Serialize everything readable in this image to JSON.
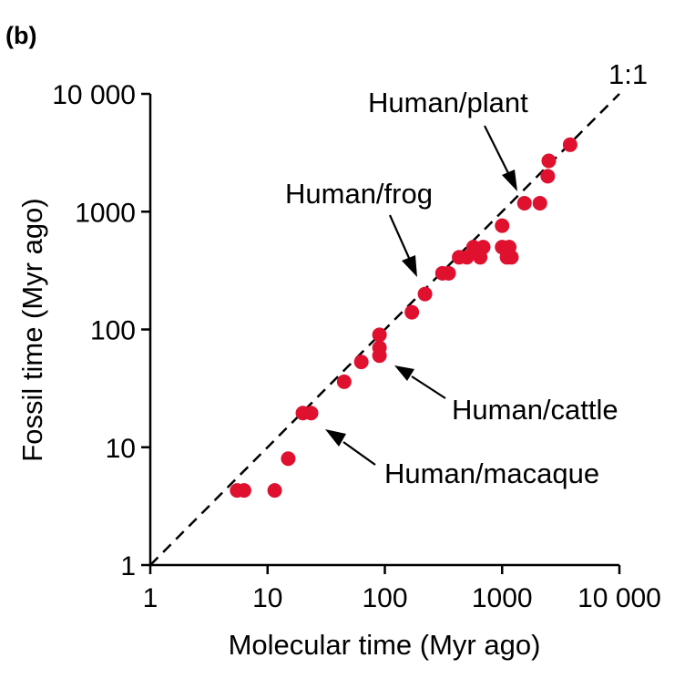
{
  "panel_label": "(b)",
  "chart_data": {
    "type": "scatter",
    "xlabel": "Molecular time (Myr ago)",
    "ylabel": "Fossil time (Myr ago)",
    "xscale": "log",
    "yscale": "log",
    "xlim": [
      1,
      10000
    ],
    "ylim": [
      1,
      10000
    ],
    "xticks": [
      1,
      10,
      100,
      1000,
      10000
    ],
    "yticks": [
      1,
      10,
      100,
      1000,
      10000
    ],
    "xtick_labels": [
      "1",
      "10",
      "100",
      "1000",
      "10 000"
    ],
    "ytick_labels": [
      "1",
      "10",
      "100",
      "1000",
      "10 000"
    ],
    "grid": false,
    "point_color": "#e0102f",
    "reference_line": {
      "label": "1:1",
      "style": "dashed",
      "from": [
        1,
        1
      ],
      "to": [
        10000,
        10000
      ]
    },
    "points": [
      {
        "x": 5.5,
        "y": 4.3
      },
      {
        "x": 6.3,
        "y": 4.3
      },
      {
        "x": 11.5,
        "y": 4.3
      },
      {
        "x": 15,
        "y": 8
      },
      {
        "x": 20,
        "y": 19.5
      },
      {
        "x": 23.5,
        "y": 19.5
      },
      {
        "x": 45,
        "y": 36
      },
      {
        "x": 63,
        "y": 53
      },
      {
        "x": 90,
        "y": 60
      },
      {
        "x": 90,
        "y": 70
      },
      {
        "x": 90,
        "y": 90
      },
      {
        "x": 170,
        "y": 140
      },
      {
        "x": 220,
        "y": 200
      },
      {
        "x": 310,
        "y": 300
      },
      {
        "x": 350,
        "y": 300
      },
      {
        "x": 430,
        "y": 410
      },
      {
        "x": 500,
        "y": 410
      },
      {
        "x": 570,
        "y": 500
      },
      {
        "x": 650,
        "y": 410
      },
      {
        "x": 690,
        "y": 500
      },
      {
        "x": 1000,
        "y": 760
      },
      {
        "x": 1000,
        "y": 500
      },
      {
        "x": 1100,
        "y": 410
      },
      {
        "x": 1150,
        "y": 500
      },
      {
        "x": 1200,
        "y": 410
      },
      {
        "x": 1550,
        "y": 1180
      },
      {
        "x": 2100,
        "y": 1180
      },
      {
        "x": 2450,
        "y": 2000
      },
      {
        "x": 2500,
        "y": 2700
      },
      {
        "x": 3800,
        "y": 3700
      }
    ],
    "annotations": [
      {
        "text": "Human/plant",
        "point": [
          1550,
          1180
        ]
      },
      {
        "text": "Human/frog",
        "point": [
          220,
          200
        ]
      },
      {
        "text": "Human/cattle",
        "point": [
          90,
          60
        ]
      },
      {
        "text": "Human/macaque",
        "point": [
          23.5,
          19.5
        ]
      }
    ]
  }
}
